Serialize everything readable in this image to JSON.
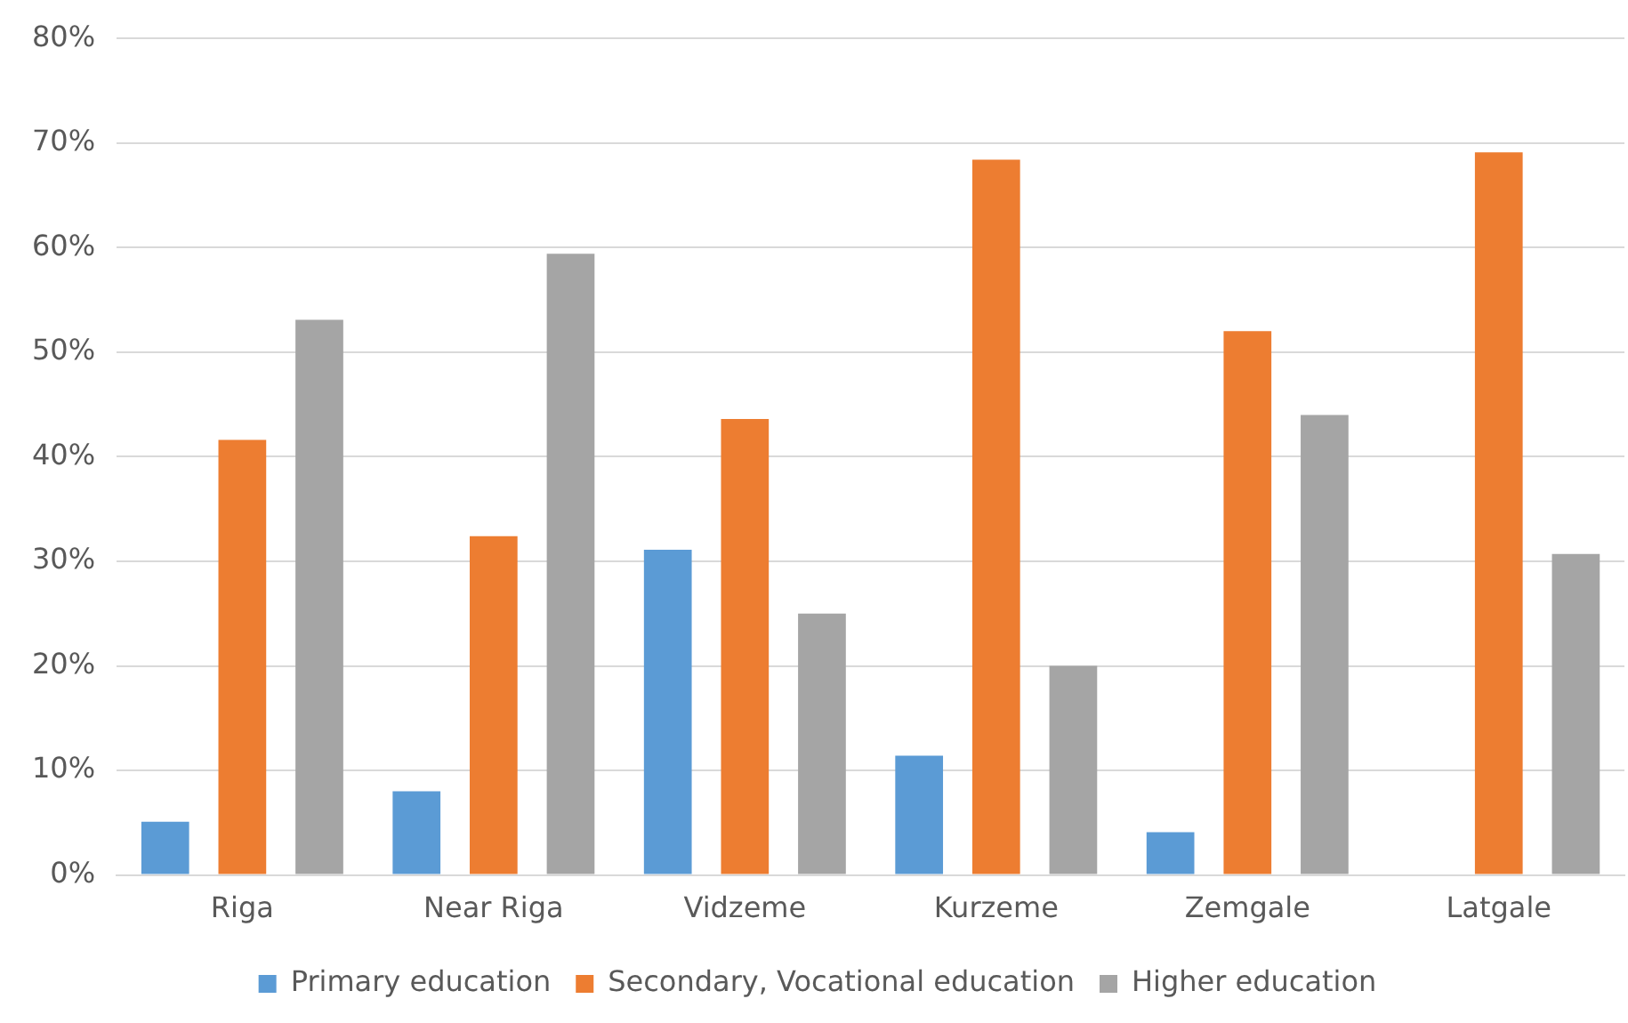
{
  "chart_data": {
    "type": "bar",
    "categories": [
      "Riga",
      "Near Riga",
      "Vidzeme",
      "Kurzeme",
      "Zemgale",
      "Latgale"
    ],
    "series": [
      {
        "name": "Primary education",
        "color": "#5b9bd5",
        "values": [
          5.1,
          8.0,
          31.1,
          11.4,
          4.1,
          0
        ]
      },
      {
        "name": "Secondary, Vocational education",
        "color": "#ed7d31",
        "values": [
          41.6,
          32.4,
          43.6,
          68.4,
          52.0,
          69.1
        ]
      },
      {
        "name": "Higher education",
        "color": "#a5a5a5",
        "values": [
          53.1,
          59.4,
          25.0,
          20.0,
          44.0,
          30.7
        ]
      }
    ],
    "ylim": [
      0,
      80
    ],
    "yticks": [
      {
        "value": 0,
        "label": "0%"
      },
      {
        "value": 10,
        "label": "10%"
      },
      {
        "value": 20,
        "label": "20%"
      },
      {
        "value": 30,
        "label": "30%"
      },
      {
        "value": 40,
        "label": "40%"
      },
      {
        "value": 50,
        "label": "50%"
      },
      {
        "value": 60,
        "label": "60%"
      },
      {
        "value": 70,
        "label": "70%"
      },
      {
        "value": 80,
        "label": "80%"
      }
    ],
    "grid": "y",
    "legend": "bottom"
  }
}
